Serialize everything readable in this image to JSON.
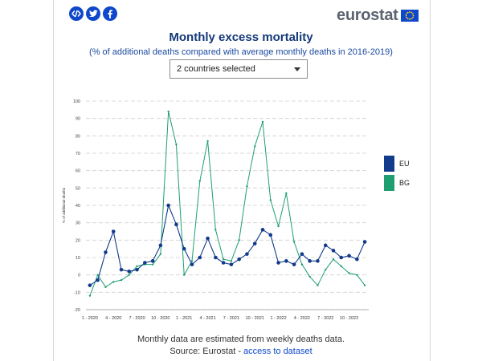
{
  "social": {
    "icons": [
      "embed-icon",
      "twitter-icon",
      "facebook-icon"
    ]
  },
  "brand": {
    "name": "eurostat"
  },
  "header": {
    "title": "Monthly excess mortality",
    "subtitle": "(% of additional deaths compared with average monthly deaths in 2016-2019)"
  },
  "selector": {
    "selected": "2 countries selected"
  },
  "colors": {
    "eu": "#123b8c",
    "bg": "#1e9e71",
    "grid": "#cfcfcf",
    "brand_blue": "#0e47cb"
  },
  "chart_data": {
    "type": "line",
    "ylabel": "% of additional deaths",
    "ylim": [
      -20,
      100
    ],
    "yticks": [
      -20,
      -10,
      0,
      10,
      20,
      30,
      40,
      50,
      60,
      70,
      80,
      90,
      100
    ],
    "xtick_labels": [
      "1 - 2020",
      "4 - 2020",
      "7 - 2020",
      "10 - 2020",
      "1 - 2021",
      "4 - 2021",
      "7 - 2021",
      "10 - 2021",
      "1 - 2022",
      "4 - 2022",
      "7 - 2022",
      "10 - 2022"
    ],
    "months": 36,
    "series": [
      {
        "name": "EU",
        "values": [
          -6,
          -3,
          13,
          25,
          3,
          2,
          3,
          7,
          8,
          17,
          40,
          29,
          15,
          6,
          10,
          21,
          10,
          7,
          6,
          9,
          12,
          18,
          26,
          23,
          7,
          8,
          6,
          12,
          8,
          8,
          17,
          14,
          10,
          11,
          9,
          19
        ]
      },
      {
        "name": "BG",
        "values": [
          -12,
          0,
          -7,
          -4,
          -3,
          0,
          5,
          6,
          6,
          12,
          94,
          75,
          0,
          8,
          54,
          77,
          26,
          9,
          8,
          20,
          51,
          74,
          88,
          43,
          28,
          47,
          19,
          6,
          -1,
          -6,
          3,
          9,
          5,
          1,
          0,
          -6
        ]
      }
    ]
  },
  "footer": {
    "note": "Monthly data are estimated from weekly deaths data.",
    "source_prefix": "Source: Eurostat - ",
    "source_link": "access to dataset"
  }
}
